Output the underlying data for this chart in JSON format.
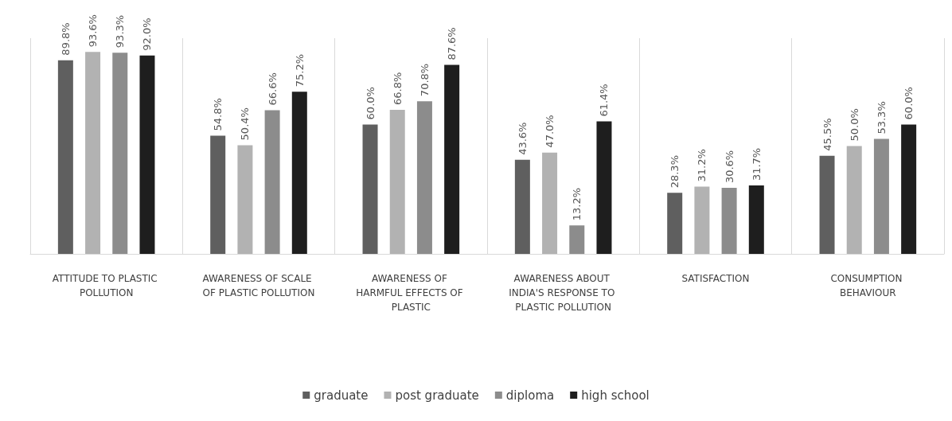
{
  "chart_data": {
    "type": "bar",
    "categories": [
      "ATTITUDE TO PLASTIC POLLUTION",
      "AWARENESS OF SCALE OF PLASTIC POLLUTION",
      "AWARENESS OF HARMFUL EFFECTS OF PLASTIC",
      "AWARENESS ABOUT INDIA'S RESPONSE TO PLASTIC POLLUTION",
      "SATISFACTION",
      "CONSUMPTION BEHAVIOUR"
    ],
    "series": [
      {
        "name": "graduate",
        "color": "#5f5f5f",
        "values": [
          89.8,
          54.8,
          60.0,
          43.6,
          28.3,
          45.5
        ],
        "value_labels": [
          "89.8%",
          "54.8%",
          "60.0%",
          "43.6%",
          "28.3%",
          "45.5%"
        ]
      },
      {
        "name": "post graduate",
        "color": "#b2b2b2",
        "values": [
          93.6,
          50.4,
          66.8,
          47.0,
          31.2,
          50.0
        ],
        "value_labels": [
          "93.6%",
          "50.4%",
          "66.8%",
          "47.0%",
          "31.2%",
          "50.0%"
        ]
      },
      {
        "name": "diploma",
        "color": "#8c8c8c",
        "values": [
          93.3,
          66.6,
          70.8,
          13.2,
          30.6,
          53.3
        ],
        "value_labels": [
          "93.3%",
          "66.6%",
          "70.8%",
          "13.2%",
          "30.6%",
          "53.3%"
        ]
      },
      {
        "name": "high school",
        "color": "#1e1e1e",
        "values": [
          92.0,
          75.2,
          87.6,
          61.4,
          31.7,
          60.0
        ],
        "value_labels": [
          "92.0%",
          "75.2%",
          "87.6%",
          "61.4%",
          "31.7%",
          "60.0%"
        ]
      }
    ],
    "grid": "x",
    "legend": "bottom"
  }
}
